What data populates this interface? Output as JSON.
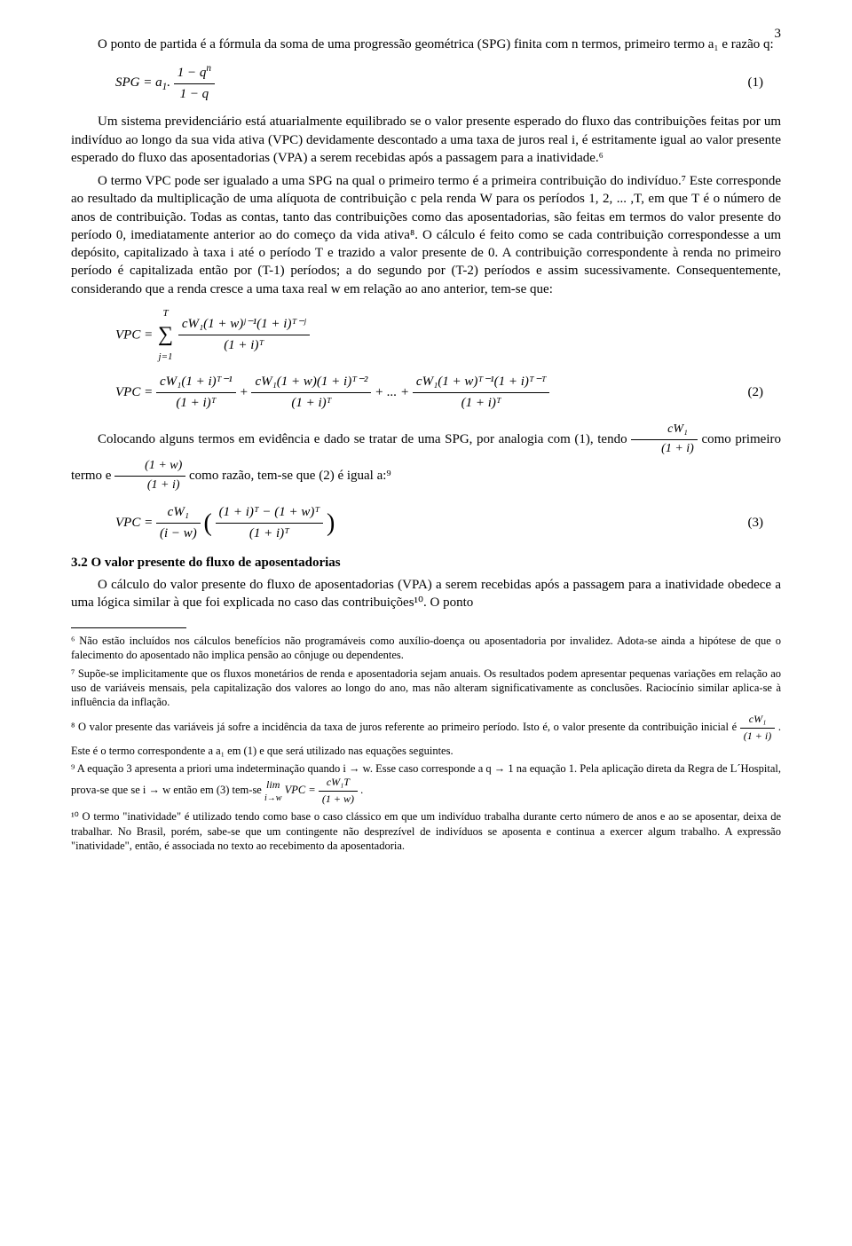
{
  "pageNumber": "3",
  "body": {
    "para0": "O ponto de partida é a fórmula da soma de uma progressão geométrica (SPG) finita com n termos, primeiro termo a₁ e razão q:",
    "eq1_lhs": "SPG = a",
    "eq1_sub": "1",
    "eq1_dot": ".",
    "eq1_num": "1 − q",
    "eq1_num_sup": "n",
    "eq1_den": "1 − q",
    "eq1_num_label": "(1)",
    "para1": "Um sistema previdenciário está atuarialmente equilibrado se o valor presente esperado do fluxo das contribuições feitas por um indivíduo ao longo da sua vida ativa (VPC) devidamente descontado a uma taxa de juros real i, é estritamente igual ao valor presente esperado do fluxo das aposentadorias (VPA) a serem recebidas após a passagem para a inatividade.⁶",
    "para2a": "O termo VPC pode ser igualado a uma SPG na qual o primeiro termo é a primeira contribuição do indivíduo.⁷ Este corresponde ao resultado da multiplicação de uma alíquota de contribuição c pela renda W para os períodos 1, 2, ... ,T, em que T é o número de anos de contribuição. Todas as contas, tanto das contribuições como das aposentadorias, são feitas em termos do valor presente do período 0, imediatamente anterior ao do começo da vida ativa⁸. O cálculo é feito como se cada contribuição correspondesse a um depósito, capitalizado à taxa i até o período T e trazido a valor presente de 0. A contribuição correspondente à renda no primeiro período é capitalizada então por (T-1) períodos; a do segundo por (T-2) períodos e assim sucessivamente.  Consequentemente, considerando que a renda cresce a uma taxa real w em relação ao ano anterior, tem-se que:",
    "eq2a_lhs": "VPC = ",
    "eq2a_sum_top": "T",
    "eq2a_sum_bot": "j=1",
    "eq2a_num": "cW₁(1 + w)ʲ⁻¹(1 + i)ᵀ⁻ʲ",
    "eq2a_den": "(1 + i)ᵀ",
    "eq2b_lhs": "VPC = ",
    "eq2b_t1_num": "cW₁(1 + i)ᵀ⁻¹",
    "eq2b_t1_den": "(1 + i)ᵀ",
    "eq2b_plus": " + ",
    "eq2b_t2_num": "cW₁(1 + w)(1 + i)ᵀ⁻²",
    "eq2b_t2_den": "(1 + i)ᵀ",
    "eq2b_dots": " + ... + ",
    "eq2b_t3_num": "cW₁(1 + w)ᵀ⁻¹(1 + i)ᵀ⁻ᵀ",
    "eq2b_t3_den": "(1 + i)ᵀ",
    "eq2_num_label": "(2)",
    "para3a": "Colocando alguns termos em evidência e dado se tratar de uma SPG, por analogia com (1), tendo ",
    "para3_frac1_num": "cW₁",
    "para3_frac1_den": "(1 + i)",
    "para3b": " como primeiro termo e ",
    "para3_frac2_num": "(1 + w)",
    "para3_frac2_den": "(1 + i)",
    "para3c": " como razão, tem-se que (2) é igual a:⁹",
    "eq3_lhs": "VPC = ",
    "eq3_f1_num": "cW₁",
    "eq3_f1_den": "(i − w)",
    "eq3_f2_num": "(1 + i)ᵀ − (1 + w)ᵀ",
    "eq3_f2_den": "(1 + i)ᵀ",
    "eq3_num_label": "(3)",
    "section_heading": "3.2  O valor presente do fluxo de aposentadorias",
    "para4": "O cálculo do valor presente do fluxo de aposentadorias (VPA) a serem recebidas após a passagem para a inatividade obedece a uma lógica similar à que foi explicada no caso das contribuições¹⁰. O ponto"
  },
  "footnotes": {
    "fn6": "⁶ Não estão incluídos nos cálculos benefícios não programáveis como auxílio-doença ou aposentadoria por invalidez. Adota-se ainda a hipótese de que o falecimento do aposentado não implica pensão ao cônjuge ou dependentes.",
    "fn7": "⁷ Supõe-se implicitamente que os fluxos monetários de renda e aposentadoria sejam anuais. Os resultados podem apresentar pequenas variações em relação ao uso de variáveis mensais, pela capitalização dos valores ao longo do ano, mas não alteram significativamente as conclusões. Raciocínio similar aplica-se à influência da inflação.",
    "fn8a": "⁸ O valor presente das variáveis já sofre a incidência da taxa de juros referente ao primeiro período. Isto é, o valor presente da contribuição inicial é ",
    "fn8_frac_num": "cW₁",
    "fn8_frac_den": "(1 + i)",
    "fn8b": ". Este é o termo correspondente a a₁ em (1) e que será utilizado nas equações seguintes.",
    "fn9a": "⁹ A equação 3 apresenta a priori uma indeterminação quando i → w. Esse caso corresponde a q → 1 na equação 1. Pela aplicação direta da Regra de L´Hospital, prova-se que se i → w então em (3) tem-se ",
    "fn9_lim": "lim",
    "fn9_lim_sub": "i→w",
    "fn9_vpc": " VPC = ",
    "fn9_frac_num": "cW₁T",
    "fn9_frac_den": "(1 + w)",
    "fn9b": ".",
    "fn10": "¹⁰ O termo \"inatividade\" é utilizado tendo como base o caso clássico em que um indivíduo trabalha durante certo número de anos e ao se aposentar, deixa de trabalhar. No Brasil, porém, sabe-se que um contingente não desprezível de indivíduos se aposenta e continua a exercer algum trabalho. A expressão \"inatividade\", então, é associada no texto ao recebimento da aposentadoria."
  }
}
